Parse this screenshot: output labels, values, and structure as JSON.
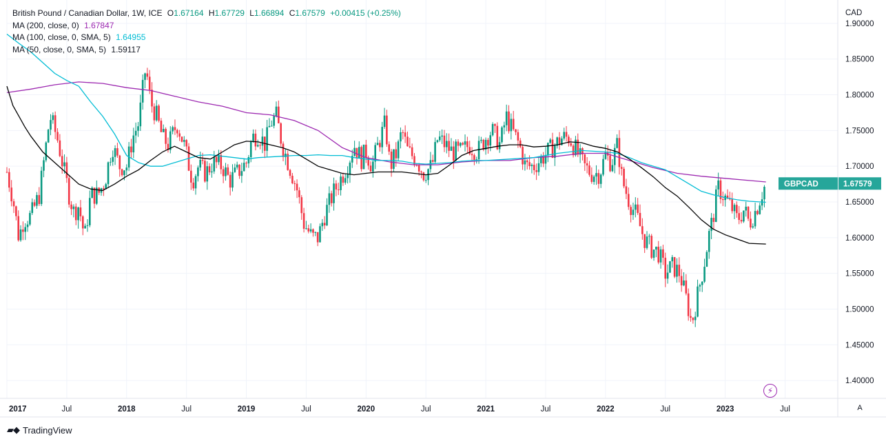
{
  "chart_data": {
    "type": "candlestick",
    "title": "British Pound / Canadian Dollar, 1W, ICE",
    "symbol": "GBPCAD",
    "currency": "CAD",
    "ohlc": {
      "o_label": "O",
      "o": "1.67164",
      "h_label": "H",
      "h": "1.67729",
      "l_label": "L",
      "l": "1.66894",
      "c_label": "C",
      "c": "1.67579",
      "change": "+0.00415 (+0.25%)"
    },
    "last_price": 1.67579,
    "last_price_label": "1.67579",
    "ylim": [
      1.375,
      1.925
    ],
    "y_ticks": [
      1.4,
      1.45,
      1.5,
      1.55,
      1.6,
      1.65,
      1.7,
      1.75,
      1.8,
      1.85,
      1.9
    ],
    "y_tick_labels": [
      "1.40000",
      "1.45000",
      "1.50000",
      "1.55000",
      "1.60000",
      "1.65000",
      "1.70000",
      "1.75000",
      "1.80000",
      "1.85000",
      "1.90000"
    ],
    "x_range": [
      2017.0,
      2023.94
    ],
    "x_ticks": [
      {
        "t": 2017.0,
        "label": "2017",
        "year": true
      },
      {
        "t": 2017.5,
        "label": "Jul",
        "year": false
      },
      {
        "t": 2018.0,
        "label": "2018",
        "year": true
      },
      {
        "t": 2018.5,
        "label": "Jul",
        "year": false
      },
      {
        "t": 2019.0,
        "label": "2019",
        "year": true
      },
      {
        "t": 2019.5,
        "label": "Jul",
        "year": false
      },
      {
        "t": 2020.0,
        "label": "2020",
        "year": true
      },
      {
        "t": 2020.5,
        "label": "Jul",
        "year": false
      },
      {
        "t": 2021.0,
        "label": "2021",
        "year": true
      },
      {
        "t": 2021.5,
        "label": "Jul",
        "year": false
      },
      {
        "t": 2022.0,
        "label": "2022",
        "year": true
      },
      {
        "t": 2022.5,
        "label": "Jul",
        "year": false
      },
      {
        "t": 2023.0,
        "label": "2023",
        "year": true
      },
      {
        "t": 2023.5,
        "label": "Jul",
        "year": false
      }
    ],
    "close_path": [
      [
        2017.0,
        1.692
      ],
      [
        2017.05,
        1.655
      ],
      [
        2017.1,
        1.6
      ],
      [
        2017.14,
        1.625
      ],
      [
        2017.2,
        1.63
      ],
      [
        2017.27,
        1.66
      ],
      [
        2017.32,
        1.72
      ],
      [
        2017.36,
        1.77
      ],
      [
        2017.42,
        1.74
      ],
      [
        2017.47,
        1.7
      ],
      [
        2017.52,
        1.66
      ],
      [
        2017.56,
        1.635
      ],
      [
        2017.6,
        1.645
      ],
      [
        2017.65,
        1.6
      ],
      [
        2017.7,
        1.66
      ],
      [
        2017.76,
        1.66
      ],
      [
        2017.82,
        1.68
      ],
      [
        2017.88,
        1.73
      ],
      [
        2017.94,
        1.7
      ],
      [
        2018.0,
        1.7
      ],
      [
        2018.05,
        1.74
      ],
      [
        2018.1,
        1.76
      ],
      [
        2018.16,
        1.84
      ],
      [
        2018.2,
        1.79
      ],
      [
        2018.25,
        1.77
      ],
      [
        2018.3,
        1.74
      ],
      [
        2018.35,
        1.73
      ],
      [
        2018.42,
        1.76
      ],
      [
        2018.48,
        1.73
      ],
      [
        2018.55,
        1.68
      ],
      [
        2018.6,
        1.7
      ],
      [
        2018.66,
        1.69
      ],
      [
        2018.72,
        1.705
      ],
      [
        2018.8,
        1.7
      ],
      [
        2018.86,
        1.68
      ],
      [
        2018.92,
        1.69
      ],
      [
        2019.0,
        1.705
      ],
      [
        2019.05,
        1.74
      ],
      [
        2019.1,
        1.745
      ],
      [
        2019.16,
        1.73
      ],
      [
        2019.2,
        1.76
      ],
      [
        2019.25,
        1.77
      ],
      [
        2019.3,
        1.73
      ],
      [
        2019.36,
        1.7
      ],
      [
        2019.42,
        1.67
      ],
      [
        2019.48,
        1.62
      ],
      [
        2019.55,
        1.6
      ],
      [
        2019.6,
        1.6
      ],
      [
        2019.65,
        1.63
      ],
      [
        2019.72,
        1.66
      ],
      [
        2019.78,
        1.68
      ],
      [
        2019.84,
        1.7
      ],
      [
        2019.9,
        1.73
      ],
      [
        2019.96,
        1.71
      ],
      [
        2020.0,
        1.72
      ],
      [
        2020.05,
        1.7
      ],
      [
        2020.1,
        1.73
      ],
      [
        2020.16,
        1.76
      ],
      [
        2020.2,
        1.7
      ],
      [
        2020.26,
        1.72
      ],
      [
        2020.3,
        1.75
      ],
      [
        2020.35,
        1.72
      ],
      [
        2020.42,
        1.71
      ],
      [
        2020.48,
        1.69
      ],
      [
        2020.55,
        1.7
      ],
      [
        2020.6,
        1.74
      ],
      [
        2020.66,
        1.73
      ],
      [
        2020.72,
        1.72
      ],
      [
        2020.8,
        1.72
      ],
      [
        2020.86,
        1.73
      ],
      [
        2020.93,
        1.72
      ],
      [
        2021.0,
        1.74
      ],
      [
        2021.05,
        1.75
      ],
      [
        2021.12,
        1.73
      ],
      [
        2021.17,
        1.77
      ],
      [
        2021.22,
        1.75
      ],
      [
        2021.28,
        1.73
      ],
      [
        2021.33,
        1.7
      ],
      [
        2021.4,
        1.7
      ],
      [
        2021.46,
        1.71
      ],
      [
        2021.52,
        1.72
      ],
      [
        2021.58,
        1.73
      ],
      [
        2021.64,
        1.74
      ],
      [
        2021.7,
        1.74
      ],
      [
        2021.76,
        1.72
      ],
      [
        2021.82,
        1.7
      ],
      [
        2021.88,
        1.69
      ],
      [
        2021.95,
        1.69
      ],
      [
        2022.0,
        1.715
      ],
      [
        2022.05,
        1.705
      ],
      [
        2022.1,
        1.73
      ],
      [
        2022.14,
        1.68
      ],
      [
        2022.2,
        1.65
      ],
      [
        2022.26,
        1.63
      ],
      [
        2022.32,
        1.6
      ],
      [
        2022.38,
        1.585
      ],
      [
        2022.44,
        1.58
      ],
      [
        2022.5,
        1.55
      ],
      [
        2022.56,
        1.56
      ],
      [
        2022.62,
        1.55
      ],
      [
        2022.68,
        1.51
      ],
      [
        2022.72,
        1.48
      ],
      [
        2022.77,
        1.52
      ],
      [
        2022.82,
        1.56
      ],
      [
        2022.86,
        1.6
      ],
      [
        2022.9,
        1.63
      ],
      [
        2022.94,
        1.67
      ],
      [
        2023.0,
        1.655
      ],
      [
        2023.06,
        1.64
      ],
      [
        2023.1,
        1.625
      ],
      [
        2023.16,
        1.64
      ],
      [
        2023.2,
        1.62
      ],
      [
        2023.26,
        1.64
      ],
      [
        2023.3,
        1.66
      ],
      [
        2023.34,
        1.676
      ]
    ],
    "moving_averages": [
      {
        "name": "MA (200, close, 0)",
        "value_label": "1.67847",
        "color": "#9c27b0",
        "points": [
          [
            2017.0,
            1.803
          ],
          [
            2017.2,
            1.808
          ],
          [
            2017.4,
            1.814
          ],
          [
            2017.6,
            1.818
          ],
          [
            2017.8,
            1.816
          ],
          [
            2018.0,
            1.81
          ],
          [
            2018.2,
            1.806
          ],
          [
            2018.4,
            1.798
          ],
          [
            2018.6,
            1.79
          ],
          [
            2018.8,
            1.784
          ],
          [
            2019.0,
            1.775
          ],
          [
            2019.2,
            1.772
          ],
          [
            2019.4,
            1.764
          ],
          [
            2019.6,
            1.75
          ],
          [
            2019.8,
            1.726
          ],
          [
            2020.0,
            1.712
          ],
          [
            2020.2,
            1.706
          ],
          [
            2020.4,
            1.702
          ],
          [
            2020.6,
            1.702
          ],
          [
            2020.8,
            1.706
          ],
          [
            2021.0,
            1.708
          ],
          [
            2021.2,
            1.708
          ],
          [
            2021.4,
            1.712
          ],
          [
            2021.6,
            1.714
          ],
          [
            2021.8,
            1.718
          ],
          [
            2022.0,
            1.718
          ],
          [
            2022.2,
            1.708
          ],
          [
            2022.4,
            1.698
          ],
          [
            2022.6,
            1.69
          ],
          [
            2022.8,
            1.686
          ],
          [
            2023.0,
            1.683
          ],
          [
            2023.2,
            1.68
          ],
          [
            2023.34,
            1.678
          ]
        ]
      },
      {
        "name": "MA (100, close, 0, SMA, 5)",
        "value_label": "1.64955",
        "color": "#00bcd4",
        "points": [
          [
            2017.0,
            1.885
          ],
          [
            2017.1,
            1.872
          ],
          [
            2017.2,
            1.86
          ],
          [
            2017.3,
            1.845
          ],
          [
            2017.4,
            1.83
          ],
          [
            2017.5,
            1.82
          ],
          [
            2017.6,
            1.812
          ],
          [
            2017.7,
            1.79
          ],
          [
            2017.8,
            1.77
          ],
          [
            2017.9,
            1.745
          ],
          [
            2018.0,
            1.715
          ],
          [
            2018.1,
            1.705
          ],
          [
            2018.2,
            1.7
          ],
          [
            2018.3,
            1.7
          ],
          [
            2018.4,
            1.705
          ],
          [
            2018.5,
            1.71
          ],
          [
            2018.6,
            1.715
          ],
          [
            2018.7,
            1.716
          ],
          [
            2018.8,
            1.714
          ],
          [
            2018.9,
            1.712
          ],
          [
            2019.0,
            1.71
          ],
          [
            2019.1,
            1.712
          ],
          [
            2019.2,
            1.713
          ],
          [
            2019.3,
            1.714
          ],
          [
            2019.4,
            1.715
          ],
          [
            2019.5,
            1.715
          ],
          [
            2019.6,
            1.716
          ],
          [
            2019.7,
            1.715
          ],
          [
            2019.8,
            1.715
          ],
          [
            2019.9,
            1.712
          ],
          [
            2020.0,
            1.71
          ],
          [
            2020.1,
            1.708
          ],
          [
            2020.2,
            1.708
          ],
          [
            2020.3,
            1.707
          ],
          [
            2020.4,
            1.704
          ],
          [
            2020.5,
            1.703
          ],
          [
            2020.6,
            1.704
          ],
          [
            2020.7,
            1.705
          ],
          [
            2020.8,
            1.707
          ],
          [
            2020.9,
            1.708
          ],
          [
            2021.0,
            1.708
          ],
          [
            2021.2,
            1.71
          ],
          [
            2021.4,
            1.712
          ],
          [
            2021.6,
            1.718
          ],
          [
            2021.8,
            1.722
          ],
          [
            2022.0,
            1.72
          ],
          [
            2022.1,
            1.718
          ],
          [
            2022.2,
            1.712
          ],
          [
            2022.3,
            1.705
          ],
          [
            2022.4,
            1.7
          ],
          [
            2022.5,
            1.695
          ],
          [
            2022.6,
            1.685
          ],
          [
            2022.7,
            1.675
          ],
          [
            2022.8,
            1.665
          ],
          [
            2022.9,
            1.66
          ],
          [
            2023.0,
            1.656
          ],
          [
            2023.1,
            1.653
          ],
          [
            2023.2,
            1.651
          ],
          [
            2023.34,
            1.6495
          ]
        ]
      },
      {
        "name": "MA (50, close, 0, SMA, 5)",
        "value_label": "1.59117",
        "color": "#000000",
        "points": [
          [
            2017.0,
            1.812
          ],
          [
            2017.05,
            1.785
          ],
          [
            2017.1,
            1.77
          ],
          [
            2017.15,
            1.755
          ],
          [
            2017.2,
            1.742
          ],
          [
            2017.3,
            1.72
          ],
          [
            2017.4,
            1.705
          ],
          [
            2017.5,
            1.69
          ],
          [
            2017.6,
            1.675
          ],
          [
            2017.7,
            1.668
          ],
          [
            2017.8,
            1.666
          ],
          [
            2017.9,
            1.675
          ],
          [
            2018.0,
            1.686
          ],
          [
            2018.1,
            1.695
          ],
          [
            2018.2,
            1.708
          ],
          [
            2018.3,
            1.72
          ],
          [
            2018.4,
            1.728
          ],
          [
            2018.5,
            1.72
          ],
          [
            2018.6,
            1.712
          ],
          [
            2018.7,
            1.71
          ],
          [
            2018.8,
            1.72
          ],
          [
            2018.9,
            1.73
          ],
          [
            2019.0,
            1.735
          ],
          [
            2019.1,
            1.734
          ],
          [
            2019.2,
            1.73
          ],
          [
            2019.3,
            1.726
          ],
          [
            2019.4,
            1.72
          ],
          [
            2019.5,
            1.71
          ],
          [
            2019.6,
            1.7
          ],
          [
            2019.7,
            1.695
          ],
          [
            2019.8,
            1.69
          ],
          [
            2019.9,
            1.688
          ],
          [
            2020.0,
            1.69
          ],
          [
            2020.1,
            1.692
          ],
          [
            2020.2,
            1.692
          ],
          [
            2020.3,
            1.692
          ],
          [
            2020.4,
            1.69
          ],
          [
            2020.5,
            1.688
          ],
          [
            2020.6,
            1.69
          ],
          [
            2020.7,
            1.702
          ],
          [
            2020.8,
            1.715
          ],
          [
            2020.9,
            1.722
          ],
          [
            2021.0,
            1.725
          ],
          [
            2021.1,
            1.728
          ],
          [
            2021.2,
            1.73
          ],
          [
            2021.3,
            1.73
          ],
          [
            2021.4,
            1.727
          ],
          [
            2021.5,
            1.728
          ],
          [
            2021.6,
            1.73
          ],
          [
            2021.7,
            1.734
          ],
          [
            2021.8,
            1.733
          ],
          [
            2021.9,
            1.728
          ],
          [
            2022.0,
            1.725
          ],
          [
            2022.1,
            1.72
          ],
          [
            2022.2,
            1.71
          ],
          [
            2022.3,
            1.698
          ],
          [
            2022.4,
            1.685
          ],
          [
            2022.5,
            1.67
          ],
          [
            2022.6,
            1.658
          ],
          [
            2022.7,
            1.642
          ],
          [
            2022.8,
            1.625
          ],
          [
            2022.9,
            1.612
          ],
          [
            2023.0,
            1.604
          ],
          [
            2023.1,
            1.598
          ],
          [
            2023.2,
            1.592
          ],
          [
            2023.34,
            1.591
          ]
        ]
      }
    ]
  },
  "ui": {
    "brand": "TradingView",
    "auto_scale_button": "A",
    "up_color": "#089981",
    "down_color": "#f23645",
    "grid_color": "#f0f3fa"
  }
}
